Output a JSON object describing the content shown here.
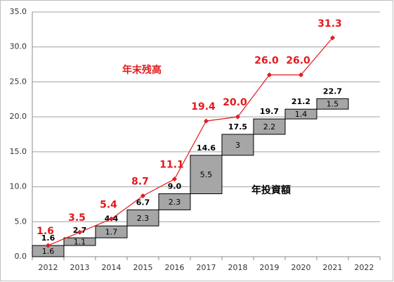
{
  "chart_data": {
    "type": "waterfall-line",
    "categories": [
      "2012",
      "2013",
      "2014",
      "2015",
      "2016",
      "2017",
      "2018",
      "2019",
      "2020",
      "2021",
      "2022"
    ],
    "series": [
      {
        "name": "年投資額",
        "type": "waterfall",
        "color": "#a6a6a6",
        "values": [
          1.6,
          1.1,
          1.7,
          2.3,
          2.3,
          5.5,
          3.0,
          2.2,
          1.4,
          1.5,
          null
        ],
        "top_labels": [
          "1.6",
          "2.7",
          "4.4",
          "6.7",
          "9.0",
          "14.6",
          "17.5",
          "19.7",
          "21.2",
          "22.7",
          null
        ]
      },
      {
        "name": "年末残高",
        "type": "line",
        "color": "#e31a1c",
        "values": [
          1.6,
          3.5,
          5.4,
          8.7,
          11.1,
          19.4,
          20.0,
          26.0,
          26.0,
          31.3,
          null
        ],
        "value_labels": [
          "1.6",
          "3.5",
          "5.4",
          "8.7",
          "11.1",
          "19.4",
          "20.0",
          "26.0",
          "26.0",
          "31.3",
          null
        ]
      }
    ],
    "ylim": [
      0,
      35
    ],
    "yticks": [
      {
        "value": 0,
        "label": "0.0"
      },
      {
        "value": 5,
        "label": "5.0"
      },
      {
        "value": 10,
        "label": "10.0"
      },
      {
        "value": 15,
        "label": "15.0"
      },
      {
        "value": 20,
        "label": "20.0"
      },
      {
        "value": 25,
        "label": "25.0"
      },
      {
        "value": 30,
        "label": "30.0"
      },
      {
        "value": 35,
        "label": "35.0"
      }
    ],
    "grid": true
  }
}
